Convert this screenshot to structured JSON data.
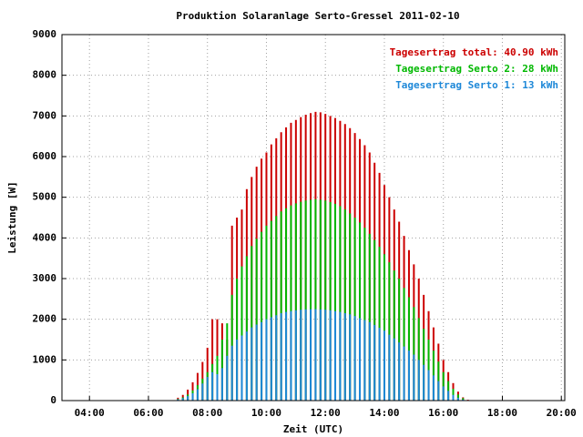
{
  "chart_data": {
    "type": "impulse",
    "title": "Produktion Solaranlage Serto-Gressel 2011-02-10",
    "x_label": "Zeit (UTC)",
    "y_label": "Leistung [W]",
    "x": [
      420,
      430,
      440,
      450,
      460,
      470,
      480,
      490,
      500,
      510,
      520,
      530,
      540,
      550,
      560,
      570,
      580,
      590,
      600,
      610,
      620,
      630,
      640,
      650,
      660,
      670,
      680,
      690,
      700,
      710,
      720,
      730,
      740,
      750,
      760,
      770,
      780,
      790,
      800,
      810,
      820,
      830,
      840,
      850,
      860,
      870,
      880,
      890,
      900,
      910,
      920,
      930,
      940,
      950,
      960,
      970,
      980,
      990,
      1000,
      1010
    ],
    "series": [
      {
        "name": "Tagesertrag total: 40.90 kWh",
        "color": "#cc0000",
        "values": [
          70,
          140,
          270,
          450,
          680,
          950,
          1300,
          2000,
          2000,
          1900,
          1500,
          4300,
          4500,
          4700,
          5200,
          5500,
          5750,
          5950,
          6100,
          6300,
          6450,
          6600,
          6720,
          6830,
          6900,
          6970,
          7030,
          7070,
          7100,
          7090,
          7050,
          7000,
          6950,
          6880,
          6800,
          6700,
          6580,
          6430,
          6280,
          6100,
          5850,
          5600,
          5300,
          5000,
          4700,
          4400,
          4050,
          3700,
          3350,
          3000,
          2600,
          2200,
          1800,
          1400,
          1000,
          700,
          430,
          220,
          80,
          20
        ]
      },
      {
        "name": "Tagesertrag Serto 2: 28 kWh",
        "color": "#00b800",
        "values": [
          40,
          80,
          150,
          250,
          380,
          540,
          700,
          900,
          1100,
          1500,
          1900,
          2600,
          3000,
          3300,
          3550,
          3800,
          3980,
          4150,
          4300,
          4420,
          4540,
          4650,
          4730,
          4800,
          4850,
          4890,
          4920,
          4940,
          4950,
          4940,
          4920,
          4880,
          4840,
          4780,
          4700,
          4600,
          4500,
          4380,
          4250,
          4100,
          3950,
          3780,
          3600,
          3400,
          3200,
          3000,
          2770,
          2540,
          2300,
          2030,
          1770,
          1500,
          1230,
          960,
          700,
          480,
          290,
          150,
          60,
          10
        ]
      },
      {
        "name": "Tagesertrag Serto 1: 13 kWh",
        "color": "#1e88d8",
        "values": [
          30,
          60,
          110,
          180,
          280,
          420,
          580,
          700,
          650,
          800,
          1100,
          1350,
          1500,
          1600,
          1700,
          1800,
          1870,
          1930,
          2000,
          2050,
          2100,
          2150,
          2180,
          2200,
          2220,
          2235,
          2245,
          2250,
          2250,
          2245,
          2235,
          2220,
          2200,
          2180,
          2150,
          2120,
          2080,
          2030,
          1980,
          1930,
          1860,
          1790,
          1720,
          1620,
          1530,
          1430,
          1330,
          1230,
          1130,
          1000,
          880,
          750,
          620,
          480,
          350,
          240,
          140,
          70,
          25,
          5
        ]
      }
    ],
    "xlim": [
      184,
      1207
    ],
    "xticks": [
      {
        "value": 240,
        "label": "04:00"
      },
      {
        "value": 360,
        "label": "06:00"
      },
      {
        "value": 480,
        "label": "08:00"
      },
      {
        "value": 600,
        "label": "10:00"
      },
      {
        "value": 720,
        "label": "12:00"
      },
      {
        "value": 840,
        "label": "14:00"
      },
      {
        "value": 960,
        "label": "16:00"
      },
      {
        "value": 1080,
        "label": "18:00"
      },
      {
        "value": 1200,
        "label": "20:00"
      }
    ],
    "ylim": [
      0,
      9000
    ],
    "yticks": [
      0,
      1000,
      2000,
      3000,
      4000,
      5000,
      6000,
      7000,
      8000,
      9000
    ],
    "grid": true,
    "legend": "upper right"
  }
}
